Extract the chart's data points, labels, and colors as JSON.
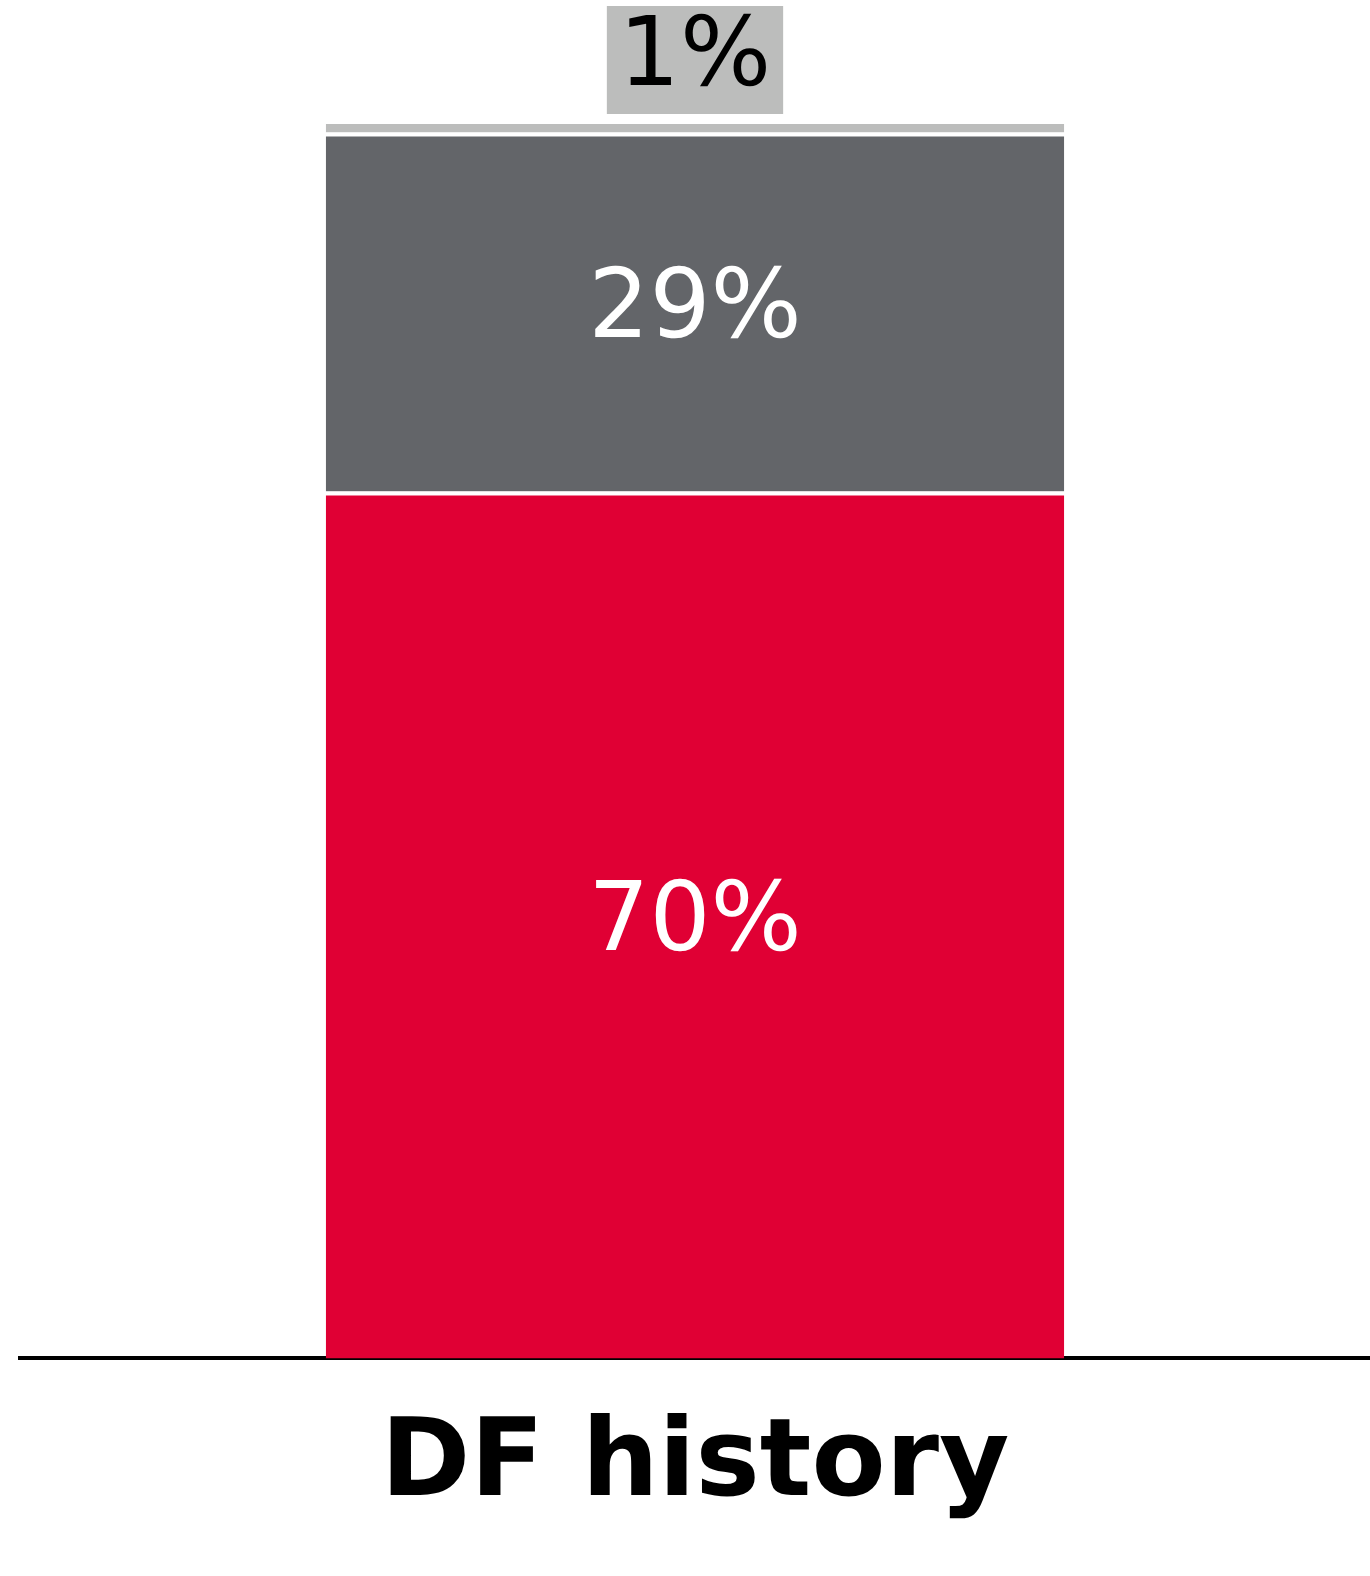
{
  "chart_data": {
    "type": "bar",
    "stacked": true,
    "categories": [
      "DF history"
    ],
    "series": [
      {
        "color": "#e00034",
        "values": [
          70
        ],
        "value_labels": [
          "70%"
        ]
      },
      {
        "color": "#636569",
        "values": [
          29
        ],
        "value_labels": [
          "29%"
        ]
      },
      {
        "color": "#bcbdbc",
        "values": [
          1
        ],
        "value_labels": [
          "1%"
        ]
      }
    ],
    "ylim": [
      0,
      100
    ],
    "tick_labels": "x",
    "grid": false,
    "legend": false
  }
}
